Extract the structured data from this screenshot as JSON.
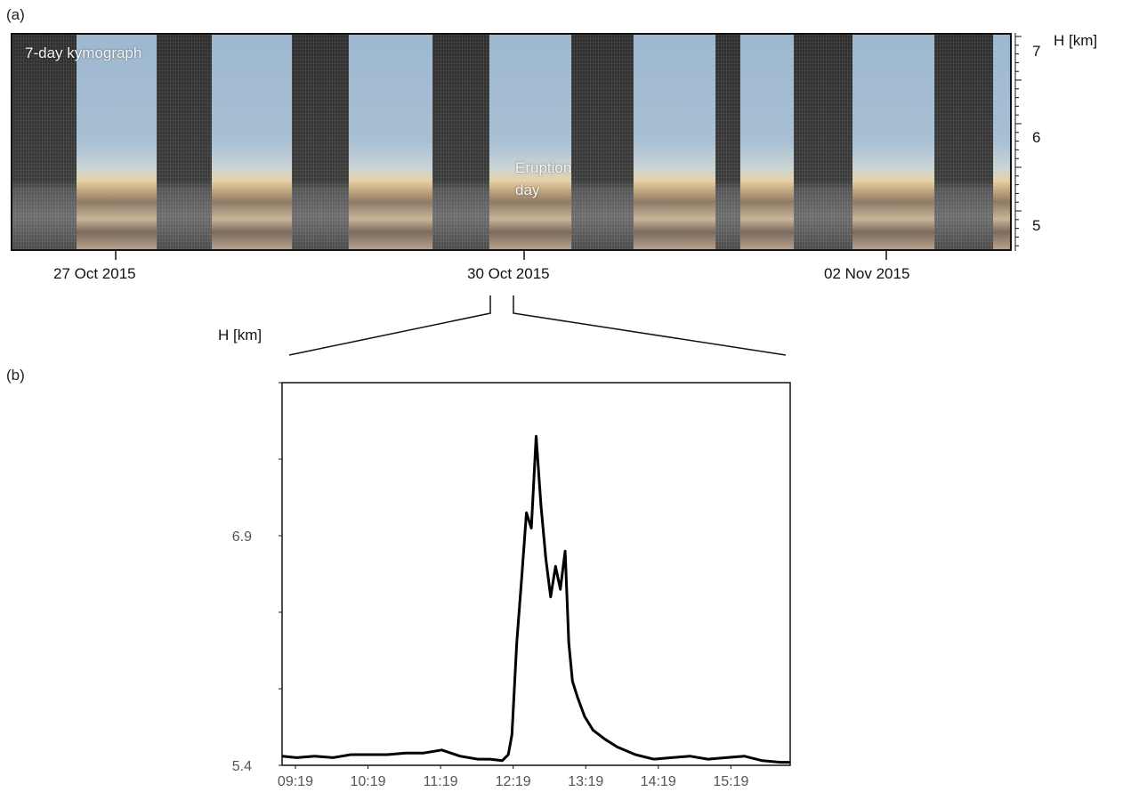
{
  "figure": {
    "panel_a_label": "(a)",
    "panel_b_label": "(b)"
  },
  "kymograph": {
    "overlay_title": "7-day kymograph",
    "annotation_line1": "Eruption",
    "annotation_line2": "day",
    "y_axis_title": "H [km]",
    "y_ticks": [
      "7",
      "6",
      "5"
    ],
    "date_labels": [
      "27 Oct 2015",
      "30 Oct 2015",
      "02 Nov 2015"
    ],
    "colors": {
      "sky": "#a9c0d3",
      "night": "#333333",
      "ground": "#c9b59a"
    }
  },
  "chart_data": {
    "type": "line",
    "title": "",
    "xlabel": "",
    "ylabel": "H [km]",
    "x_tick_labels": [
      "09:19",
      "10:19",
      "11:19",
      "12:19",
      "13:19",
      "14:19",
      "15:19"
    ],
    "y_tick_labels": [
      "6.9",
      "5.4"
    ],
    "ylim": [
      5.4,
      7.9
    ],
    "xlim": [
      "09:08",
      "16:08"
    ],
    "grid": false,
    "series": [
      {
        "color": "#000000",
        "x": [
          "09:08",
          "09:20",
          "09:35",
          "09:50",
          "10:05",
          "10:20",
          "10:35",
          "10:50",
          "11:05",
          "11:20",
          "11:35",
          "11:50",
          "12:00",
          "12:10",
          "12:15",
          "12:18",
          "12:22",
          "12:26",
          "12:30",
          "12:34",
          "12:38",
          "12:42",
          "12:46",
          "12:50",
          "12:54",
          "12:58",
          "13:02",
          "13:05",
          "13:08",
          "13:12",
          "13:18",
          "13:25",
          "13:35",
          "13:45",
          "14:00",
          "14:15",
          "14:30",
          "14:45",
          "15:00",
          "15:15",
          "15:30",
          "15:45",
          "16:00",
          "16:08"
        ],
        "values": [
          5.46,
          5.45,
          5.46,
          5.45,
          5.47,
          5.47,
          5.47,
          5.48,
          5.48,
          5.5,
          5.46,
          5.44,
          5.44,
          5.43,
          5.47,
          5.6,
          6.2,
          6.62,
          7.05,
          6.95,
          7.55,
          7.1,
          6.75,
          6.5,
          6.7,
          6.55,
          6.8,
          6.2,
          5.95,
          5.85,
          5.72,
          5.63,
          5.57,
          5.52,
          5.47,
          5.44,
          5.45,
          5.46,
          5.44,
          5.45,
          5.46,
          5.43,
          5.42,
          5.42
        ]
      }
    ]
  }
}
